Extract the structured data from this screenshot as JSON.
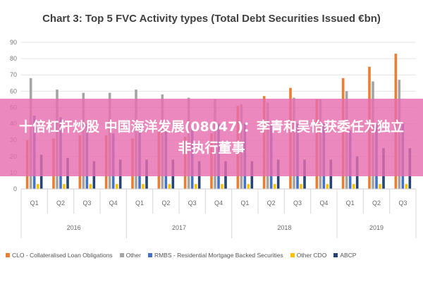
{
  "colors": {
    "clo": "#ed7d31",
    "other": "#a5a5a5",
    "rmbs": "#4472c4",
    "other_cdo": "#ffc000",
    "abcp": "#264478",
    "banner_bg": "#e66eaf"
  },
  "banner": {
    "text": "十倍杠杆炒股 中国海洋发展(08047)：李青和吴怡获委任为独立非执行董事"
  },
  "chart_data": {
    "type": "bar",
    "title": "Chart 3: Top 5 FVC Activity types (Total Debt Securities Issued €bn)",
    "xlabel": "",
    "ylabel": "",
    "ylim": [
      0,
      90
    ],
    "yticks": [
      "0",
      "10",
      "20",
      "30",
      "40",
      "50",
      "60",
      "70",
      "80",
      "90"
    ],
    "grid": true,
    "legend_position": "bottom",
    "categories": [
      "Q1",
      "Q2",
      "Q3",
      "Q4",
      "Q1",
      "Q2",
      "Q3",
      "Q4",
      "Q1",
      "Q2",
      "Q3",
      "Q4",
      "Q1",
      "Q2",
      "Q3"
    ],
    "year_groups": [
      {
        "label": "2016",
        "span": 4
      },
      {
        "label": "2017",
        "span": 4
      },
      {
        "label": "2018",
        "span": 4
      },
      {
        "label": "2019",
        "span": 3
      }
    ],
    "series": [
      {
        "name": "CLO - Collateralised Loan Obligations",
        "color_key": "clo",
        "values": [
          30,
          31,
          33,
          33,
          31,
          35,
          32,
          34,
          51,
          57,
          62,
          55,
          68,
          75,
          83
        ]
      },
      {
        "name": "Other",
        "color_key": "other",
        "values": [
          68,
          61,
          59,
          59,
          61,
          58,
          56,
          55,
          52,
          53,
          56,
          55,
          60,
          66,
          67
        ]
      },
      {
        "name": "RMBS - Residential Mortgage Backed Securities",
        "color_key": "rmbs",
        "values": [
          45,
          44,
          40,
          34,
          40,
          37,
          38,
          40,
          40,
          40,
          40,
          40,
          36,
          40,
          40
        ]
      },
      {
        "name": "Other CDO",
        "color_key": "other_cdo",
        "values": [
          3,
          3,
          3,
          3,
          3,
          3,
          3,
          3,
          3,
          3,
          3,
          3,
          3,
          3,
          3
        ]
      },
      {
        "name": "ABCP",
        "color_key": "abcp",
        "values": [
          21,
          19,
          17,
          18,
          18,
          18,
          17,
          17,
          17,
          18,
          18,
          18,
          20,
          25,
          25
        ]
      }
    ]
  }
}
